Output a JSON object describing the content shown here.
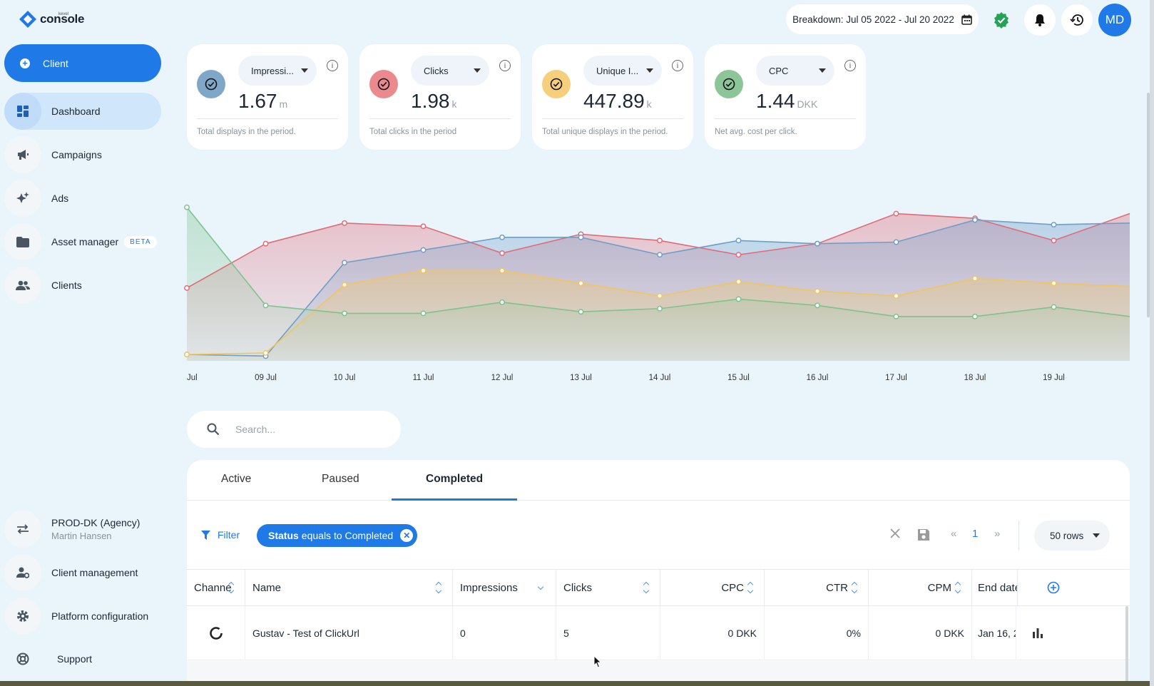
{
  "app": {
    "logo_text": "console",
    "logo_sup": "kevel"
  },
  "sidebar": {
    "client_button": "Client",
    "items": [
      {
        "label": "Dashboard",
        "icon": "dashboard-icon",
        "active": true
      },
      {
        "label": "Campaigns",
        "icon": "megaphone-icon"
      },
      {
        "label": "Ads",
        "icon": "sparkles-icon"
      },
      {
        "label": "Asset manager",
        "icon": "folder-icon",
        "badge": "BETA"
      },
      {
        "label": "Clients",
        "icon": "people-icon"
      }
    ],
    "bottom": [
      {
        "label": "PROD-DK (Agency)",
        "sub": "Martin Hansen",
        "icon": "swap-icon"
      },
      {
        "label": "Client management",
        "icon": "user-gear-icon"
      },
      {
        "label": "Platform configuration",
        "icon": "gear-icon"
      },
      {
        "label": "Support",
        "icon": "lifebuoy-icon"
      }
    ]
  },
  "header": {
    "breakdown": "Breakdown: Jul 05 2022 - Jul 20 2022",
    "avatar": "MD",
    "icons": [
      "calendar-icon",
      "verified-icon",
      "bell-icon",
      "history-icon"
    ]
  },
  "kpis": [
    {
      "metric": "Impressi...",
      "value": "1.67",
      "unit": "m",
      "desc": "Total displays in the period.",
      "color": "#7ea7c8"
    },
    {
      "metric": "Clicks",
      "value": "1.98",
      "unit": "k",
      "desc": "Total clicks in the period",
      "color": "#ea8a8e"
    },
    {
      "metric": "Unique I...",
      "value": "447.89",
      "unit": "k",
      "desc": "Total unique displays in the period.",
      "color": "#f6cf7c"
    },
    {
      "metric": "CPC",
      "value": "1.44",
      "unit": "DKK",
      "desc": "Net avg. cost per click.",
      "color": "#8cc597"
    }
  ],
  "chart_data": {
    "type": "area",
    "categories": [
      "Jul",
      "09 Jul",
      "10 Jul",
      "11 Jul",
      "12 Jul",
      "13 Jul",
      "14 Jul",
      "15 Jul",
      "16 Jul",
      "17 Jul",
      "18 Jul",
      "19 Jul",
      ""
    ],
    "ylim": [
      0,
      100
    ],
    "series": [
      {
        "color": "#e06c79",
        "values": [
          46,
          74,
          87,
          85,
          68,
          80,
          76,
          67,
          74,
          93,
          90,
          76,
          93
        ]
      },
      {
        "color": "#6f9ec9",
        "values": [
          4,
          3,
          62,
          70,
          78,
          78,
          67,
          76,
          74,
          75,
          89,
          86,
          87
        ]
      },
      {
        "color": "#f2c55f",
        "values": [
          4,
          5,
          48,
          57,
          57,
          49,
          41,
          50,
          44,
          41,
          52,
          49,
          47
        ]
      },
      {
        "color": "#7cc38d",
        "values": [
          97,
          35,
          30,
          30,
          37,
          31,
          33,
          39,
          35,
          28,
          28,
          34,
          28
        ]
      }
    ],
    "grid": false
  },
  "search": {
    "placeholder": "Search..."
  },
  "tabs": [
    "Active",
    "Paused",
    "Completed"
  ],
  "filter": {
    "label": "Filter",
    "chip_field": "Status",
    "chip_text": "equals to Completed",
    "page": "1",
    "prev": "«",
    "next": "»",
    "rows": "50 rows"
  },
  "table": {
    "columns": [
      "Channe",
      "Name",
      "Impressions",
      "Clicks",
      "CPC",
      "CTR",
      "CPM",
      "End date"
    ],
    "rows": [
      {
        "name": "Gustav - Test of ClickUrl",
        "impressions": "0",
        "clicks": "5",
        "cpc": "0 DKK",
        "ctr": "0%",
        "cpm": "0 DKK",
        "end": "Jan 16, 2"
      }
    ]
  }
}
